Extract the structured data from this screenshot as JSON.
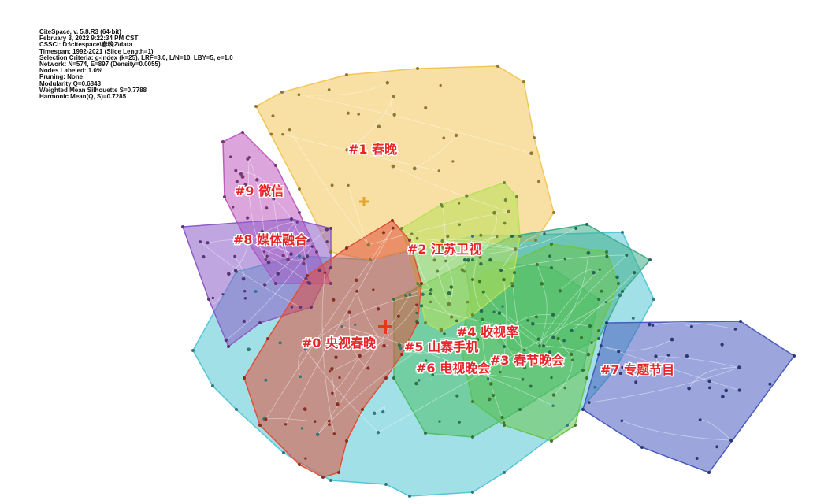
{
  "info": [
    "CiteSpace, v. 5.8.R3 (64-bit)",
    "February 3, 2022 9:22:34 PM CST",
    "CSSCI: D:\\citespace\\春晚2\\data",
    "Timespan: 1992-2021 (Slice Length=1)",
    "Selection Criteria: g-index (k=25), LRF=3.0, L/N=10, LBY=5, e=1.0",
    "Network: N=574, E=897 (Density=0.0055)",
    "Nodes Labeled: 1.0%",
    "Pruning: None",
    "Modularity Q=0.6843",
    "Weighted Mean Silhouette S=0.7788",
    "Harmonic Mean(Q, S)=0.7285"
  ],
  "clusters": [
    {
      "id": "c6",
      "label": "#6 电视晚会",
      "color": "#55c6d6"
    },
    {
      "id": "c7",
      "label": "#7 专题节目",
      "color": "#4a5cc0"
    },
    {
      "id": "c1",
      "label": "#1 春晚",
      "color": "#f2c75a"
    },
    {
      "id": "c9",
      "label": "#9 微信",
      "color": "#c05bc0"
    },
    {
      "id": "c8",
      "label": "#8 媒体融合",
      "color": "#8d5cc6"
    },
    {
      "id": "c4",
      "label": "#4 收视率",
      "color": "#3fae8a"
    },
    {
      "id": "c3",
      "label": "#3 春节晚会",
      "color": "#6cc44e"
    },
    {
      "id": "c5",
      "label": "#5 山寨手机",
      "color": "#4fbf6a"
    },
    {
      "id": "c2",
      "label": "#2 江苏卫视",
      "color": "#b8e05a"
    },
    {
      "id": "c0",
      "label": "#0 央视春晚",
      "color": "#e0503a"
    }
  ]
}
